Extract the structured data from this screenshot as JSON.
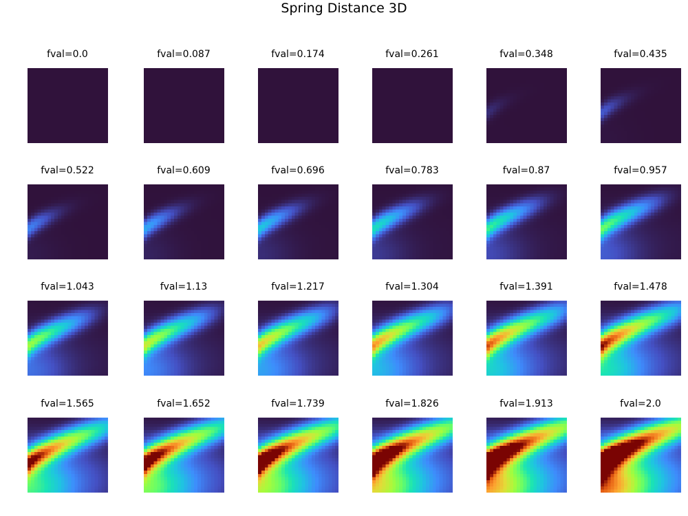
{
  "figure": {
    "title": "Spring Distance 3D"
  },
  "chart_data": {
    "type": "heatmap",
    "title": "Spring Distance 3D",
    "layout": "4 rows x 6 columns of heatmap panels",
    "colormap": "turbo",
    "axes_visible": false,
    "grid": false,
    "legend": "none",
    "panels": [
      {
        "title": "fval=0.0",
        "fval": 0.0
      },
      {
        "title": "fval=0.087",
        "fval": 0.087
      },
      {
        "title": "fval=0.174",
        "fval": 0.174
      },
      {
        "title": "fval=0.261",
        "fval": 0.261
      },
      {
        "title": "fval=0.348",
        "fval": 0.348
      },
      {
        "title": "fval=0.435",
        "fval": 0.435
      },
      {
        "title": "fval=0.522",
        "fval": 0.522
      },
      {
        "title": "fval=0.609",
        "fval": 0.609
      },
      {
        "title": "fval=0.696",
        "fval": 0.696
      },
      {
        "title": "fval=0.783",
        "fval": 0.783
      },
      {
        "title": "fval=0.87",
        "fval": 0.87
      },
      {
        "title": "fval=0.957",
        "fval": 0.957
      },
      {
        "title": "fval=1.043",
        "fval": 1.043
      },
      {
        "title": "fval=1.13",
        "fval": 1.13
      },
      {
        "title": "fval=1.217",
        "fval": 1.217
      },
      {
        "title": "fval=1.304",
        "fval": 1.304
      },
      {
        "title": "fval=1.391",
        "fval": 1.391
      },
      {
        "title": "fval=1.478",
        "fval": 1.478
      },
      {
        "title": "fval=1.565",
        "fval": 1.565
      },
      {
        "title": "fval=1.652",
        "fval": 1.652
      },
      {
        "title": "fval=1.739",
        "fval": 1.739
      },
      {
        "title": "fval=1.826",
        "fval": 1.826
      },
      {
        "title": "fval=1.913",
        "fval": 1.913
      },
      {
        "title": "fval=2.0",
        "fval": 2.0
      }
    ]
  }
}
